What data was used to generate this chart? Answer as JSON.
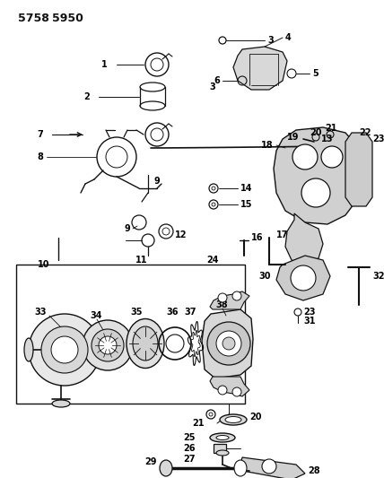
{
  "bg_color": "#ffffff",
  "line_color": "#111111",
  "label_color": "#000000",
  "fig_width": 4.28,
  "fig_height": 5.33,
  "dpi": 100
}
